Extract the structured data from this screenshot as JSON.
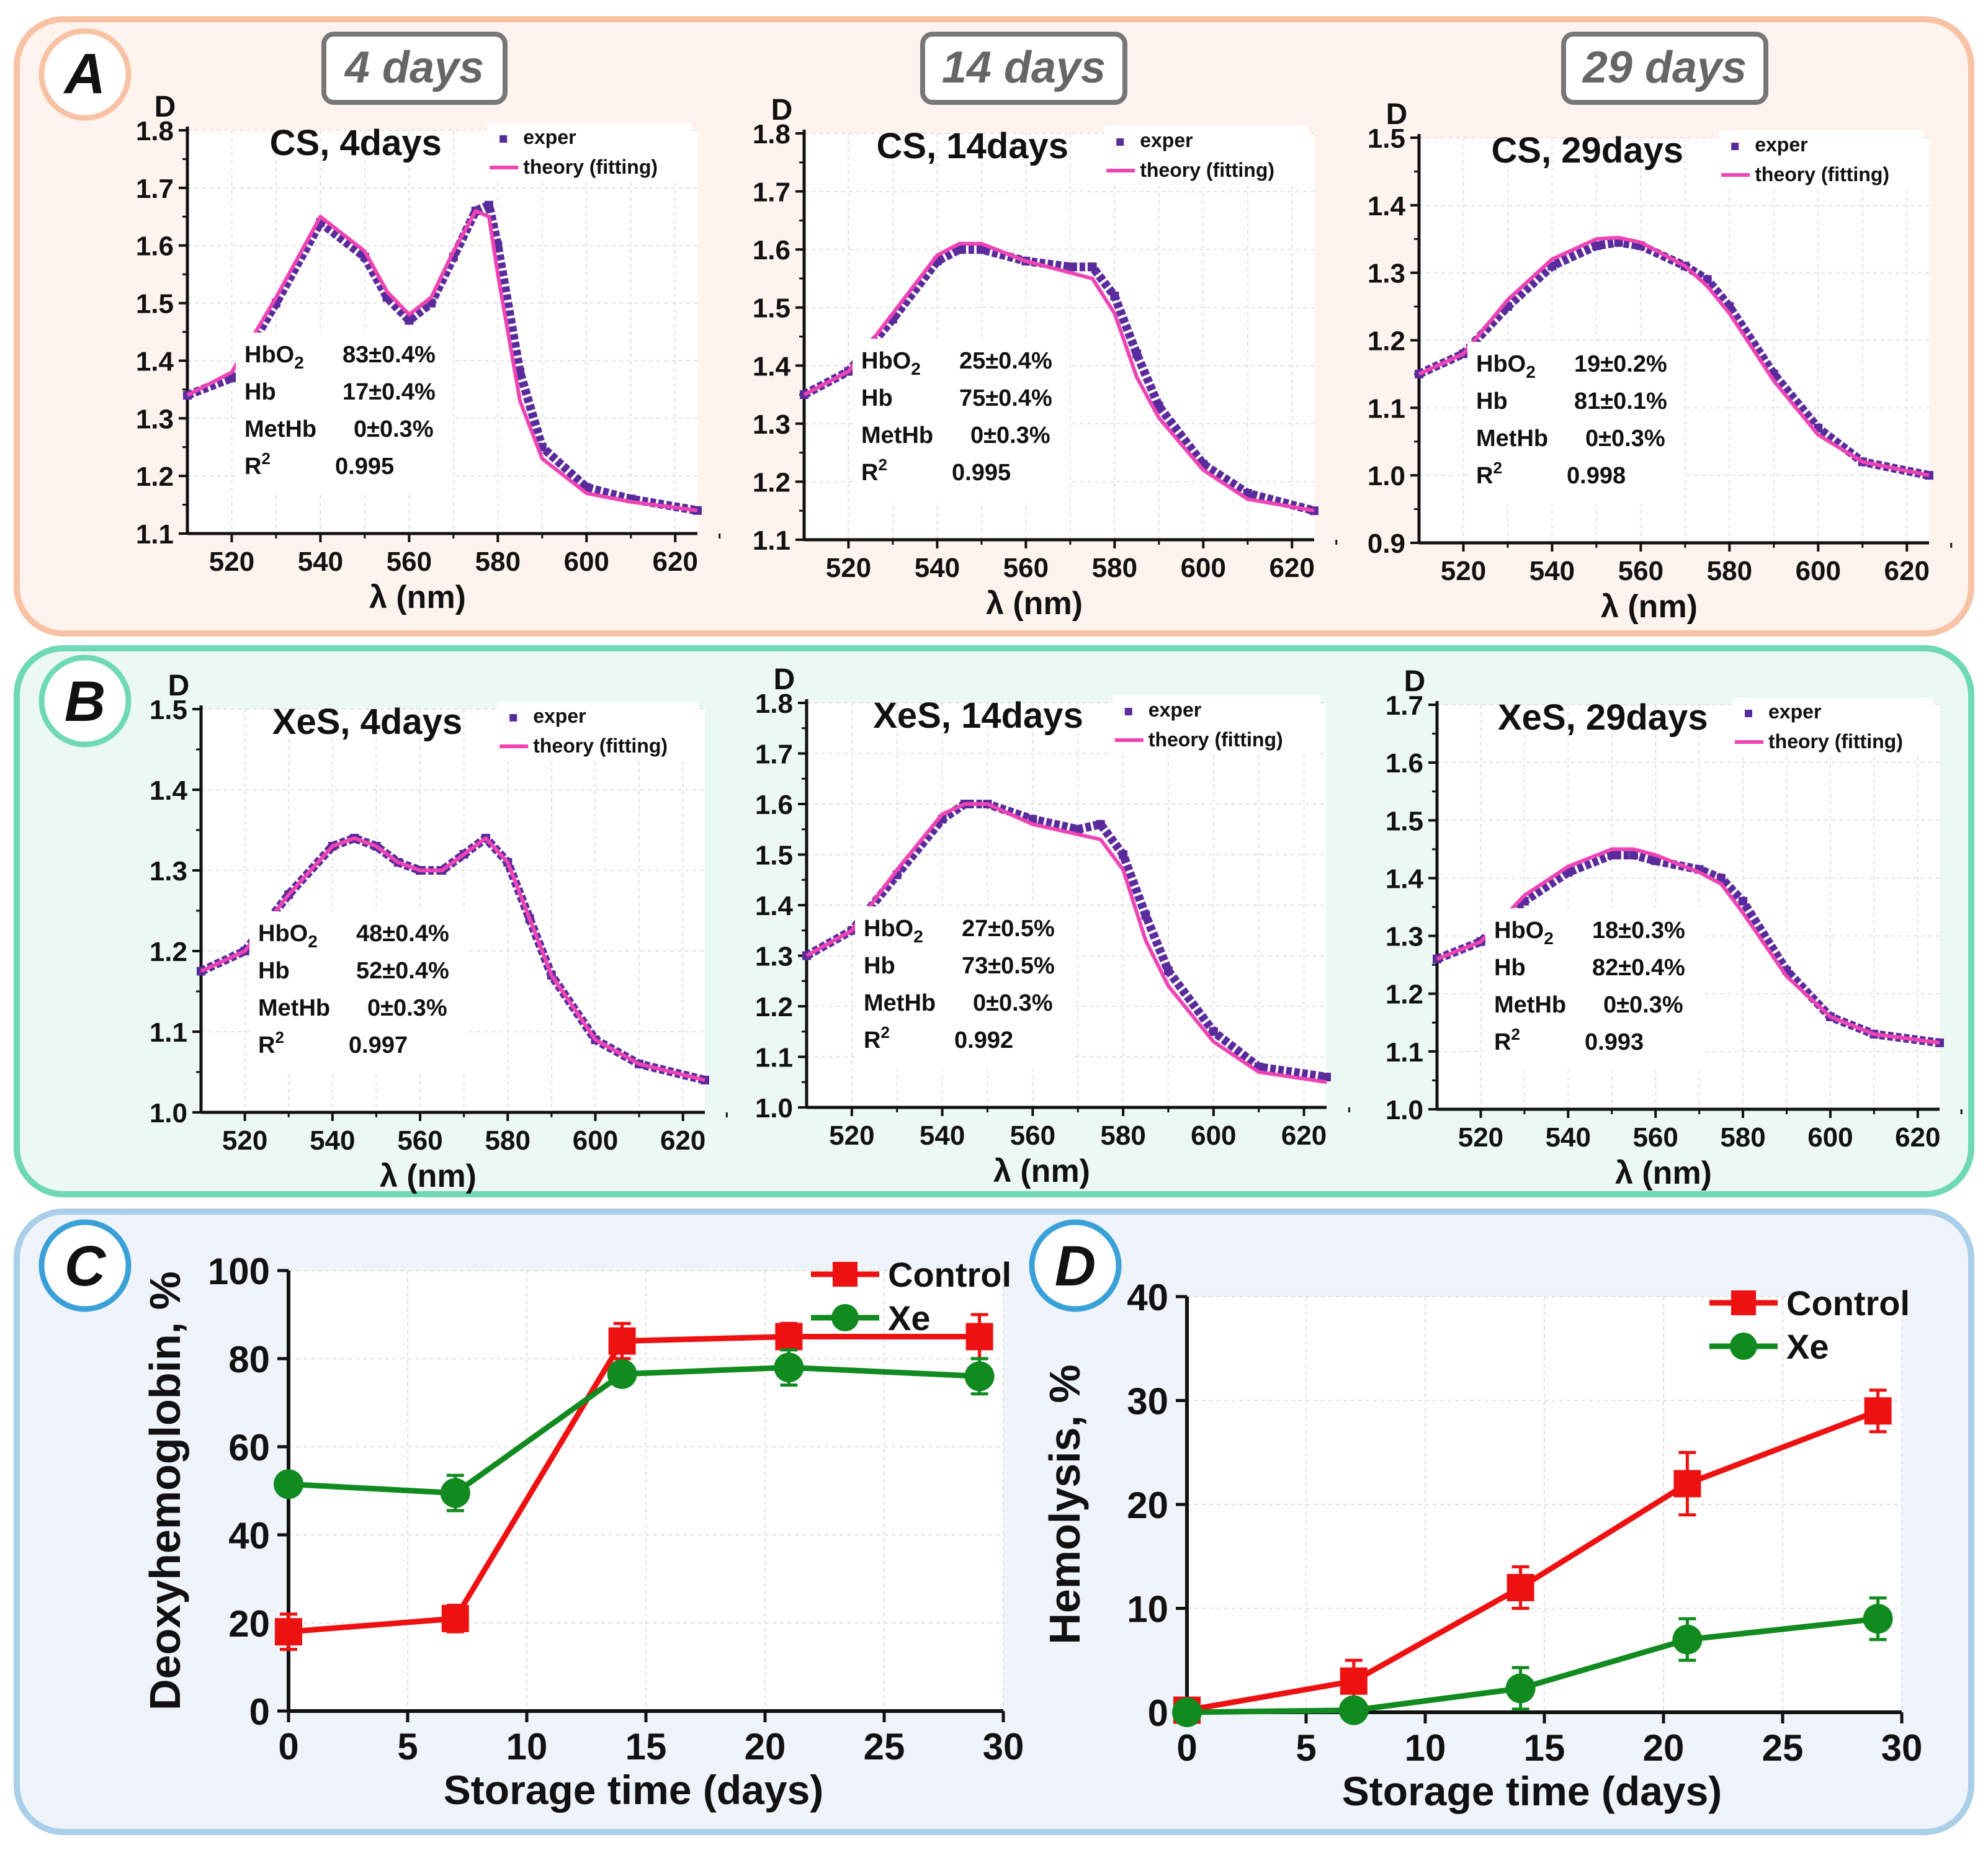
{
  "colors": {
    "exper": "#5a2b9c",
    "theory": "#ee44b4",
    "control": "#ee1111",
    "xe": "#118a1f",
    "panelA_border": "#f8c2a4",
    "panelB_border": "#6fd8b5",
    "panelCD_border": "#a9cfe9"
  },
  "panel_labels": {
    "a": "A",
    "b": "B",
    "c": "C",
    "d": "D"
  },
  "day_tags": [
    "4 days",
    "14 days",
    "29 days"
  ],
  "chart_data": [
    {
      "id": "a1",
      "type": "line",
      "panel": "A",
      "title": "CS, 4days",
      "ylabel": "D",
      "xlabel": "λ (nm)",
      "xlim": [
        510,
        625
      ],
      "xticks": [
        520,
        540,
        560,
        580,
        600,
        620
      ],
      "ylim": [
        1.1,
        1.8
      ],
      "yticks": [
        "1.1",
        "1.2",
        "1.3",
        "1.4",
        "1.5",
        "1.6",
        "1.7",
        "1.8"
      ],
      "legend": [
        "exper",
        "theory (fitting)"
      ],
      "table": {
        "labels": [
          "HbO2",
          "Hb",
          "MetHb",
          "R2"
        ],
        "values": [
          "83±0.4%",
          "17±0.4%",
          "0±0.3%",
          "0.995"
        ]
      },
      "exper": {
        "x": [
          510,
          520,
          530,
          540,
          550,
          555,
          560,
          565,
          570,
          575,
          578,
          580,
          585,
          590,
          600,
          610,
          625
        ],
        "y": [
          1.34,
          1.37,
          1.5,
          1.64,
          1.58,
          1.51,
          1.47,
          1.5,
          1.58,
          1.66,
          1.67,
          1.6,
          1.38,
          1.25,
          1.18,
          1.16,
          1.14
        ]
      },
      "theory": {
        "x": [
          510,
          520,
          530,
          540,
          550,
          555,
          560,
          565,
          570,
          575,
          578,
          580,
          585,
          590,
          600,
          610,
          625
        ],
        "y": [
          1.34,
          1.38,
          1.51,
          1.65,
          1.59,
          1.52,
          1.48,
          1.51,
          1.59,
          1.66,
          1.65,
          1.55,
          1.33,
          1.23,
          1.17,
          1.155,
          1.14
        ]
      }
    },
    {
      "id": "a2",
      "type": "line",
      "panel": "A",
      "title": "CS, 14days",
      "ylabel": "D",
      "xlabel": "λ (nm)",
      "xlim": [
        510,
        625
      ],
      "xticks": [
        520,
        540,
        560,
        580,
        600,
        620
      ],
      "ylim": [
        1.1,
        1.8
      ],
      "yticks": [
        "1.1",
        "1.2",
        "1.3",
        "1.4",
        "1.5",
        "1.6",
        "1.7",
        "1.8"
      ],
      "legend": [
        "exper",
        "theory (fitting)"
      ],
      "table": {
        "labels": [
          "HbO2",
          "Hb",
          "MetHb",
          "R2"
        ],
        "values": [
          "25±0.4%",
          "75±0.4%",
          "0±0.3%",
          "0.995"
        ]
      },
      "exper": {
        "x": [
          510,
          520,
          530,
          540,
          545,
          550,
          560,
          570,
          575,
          580,
          585,
          590,
          600,
          610,
          625
        ],
        "y": [
          1.35,
          1.39,
          1.48,
          1.58,
          1.6,
          1.6,
          1.58,
          1.57,
          1.57,
          1.52,
          1.42,
          1.33,
          1.23,
          1.18,
          1.15
        ]
      },
      "theory": {
        "x": [
          510,
          520,
          530,
          540,
          545,
          550,
          560,
          570,
          575,
          580,
          585,
          590,
          600,
          610,
          625
        ],
        "y": [
          1.35,
          1.39,
          1.49,
          1.59,
          1.61,
          1.61,
          1.58,
          1.56,
          1.55,
          1.49,
          1.38,
          1.31,
          1.22,
          1.17,
          1.15
        ]
      }
    },
    {
      "id": "a3",
      "type": "line",
      "panel": "A",
      "title": "CS, 29days",
      "ylabel": "D",
      "xlabel": "λ (nm)",
      "xlim": [
        510,
        625
      ],
      "xticks": [
        520,
        540,
        560,
        580,
        600,
        620
      ],
      "ylim": [
        0.9,
        1.5
      ],
      "yticks": [
        "0.9",
        "1.0",
        "1.1",
        "1.2",
        "1.3",
        "1.4",
        "1.5"
      ],
      "legend": [
        "exper",
        "theory (fitting)"
      ],
      "table": {
        "labels": [
          "HbO2",
          "Hb",
          "MetHb",
          "R2"
        ],
        "values": [
          "19±0.2%",
          "81±0.1%",
          "0±0.3%",
          "0.998"
        ]
      },
      "exper": {
        "x": [
          510,
          520,
          530,
          540,
          550,
          555,
          560,
          570,
          575,
          580,
          590,
          600,
          610,
          625
        ],
        "y": [
          1.15,
          1.18,
          1.25,
          1.31,
          1.34,
          1.345,
          1.34,
          1.31,
          1.29,
          1.25,
          1.15,
          1.07,
          1.02,
          1.0
        ]
      },
      "theory": {
        "x": [
          510,
          520,
          530,
          540,
          550,
          555,
          560,
          570,
          575,
          580,
          590,
          600,
          610,
          625
        ],
        "y": [
          1.15,
          1.18,
          1.26,
          1.32,
          1.35,
          1.352,
          1.345,
          1.31,
          1.28,
          1.24,
          1.14,
          1.06,
          1.02,
          1.0
        ]
      }
    },
    {
      "id": "b1",
      "type": "line",
      "panel": "B",
      "title": "XeS, 4days",
      "ylabel": "D",
      "xlabel": "λ (nm)",
      "xlim": [
        510,
        625
      ],
      "xticks": [
        520,
        540,
        560,
        580,
        600,
        620
      ],
      "ylim": [
        1.0,
        1.5
      ],
      "yticks": [
        "1.0",
        "1.1",
        "1.2",
        "1.3",
        "1.4",
        "1.5"
      ],
      "legend": [
        "exper",
        "theory (fitting)"
      ],
      "table": {
        "labels": [
          "HbO2",
          "Hb",
          "MetHb",
          "R2"
        ],
        "values": [
          "48±0.4%",
          "52±0.4%",
          "0±0.3%",
          "0.997"
        ]
      },
      "exper": {
        "x": [
          510,
          520,
          530,
          540,
          545,
          550,
          555,
          560,
          565,
          570,
          575,
          580,
          585,
          590,
          600,
          610,
          625
        ],
        "y": [
          1.175,
          1.2,
          1.27,
          1.33,
          1.34,
          1.33,
          1.31,
          1.3,
          1.3,
          1.32,
          1.34,
          1.31,
          1.24,
          1.17,
          1.09,
          1.06,
          1.04
        ]
      },
      "theory": {
        "x": [
          510,
          520,
          530,
          540,
          545,
          550,
          555,
          560,
          565,
          570,
          575,
          580,
          585,
          590,
          600,
          610,
          625
        ],
        "y": [
          1.175,
          1.2,
          1.27,
          1.33,
          1.34,
          1.33,
          1.31,
          1.3,
          1.3,
          1.32,
          1.34,
          1.31,
          1.24,
          1.17,
          1.09,
          1.06,
          1.04
        ]
      }
    },
    {
      "id": "b2",
      "type": "line",
      "panel": "B",
      "title": "XeS, 14days",
      "ylabel": "D",
      "xlabel": "λ (nm)",
      "xlim": [
        510,
        625
      ],
      "xticks": [
        520,
        540,
        560,
        580,
        600,
        620
      ],
      "ylim": [
        1.0,
        1.8
      ],
      "yticks": [
        "1.0",
        "1.1",
        "1.2",
        "1.3",
        "1.4",
        "1.5",
        "1.6",
        "1.7",
        "1.8"
      ],
      "legend": [
        "exper",
        "theory (fitting)"
      ],
      "table": {
        "labels": [
          "HbO2",
          "Hb",
          "MetHb",
          "R2"
        ],
        "values": [
          "27±0.5%",
          "73±0.5%",
          "0±0.3%",
          "0.992"
        ]
      },
      "exper": {
        "x": [
          510,
          520,
          530,
          540,
          545,
          550,
          560,
          570,
          575,
          580,
          585,
          590,
          600,
          610,
          625
        ],
        "y": [
          1.3,
          1.35,
          1.46,
          1.57,
          1.6,
          1.6,
          1.57,
          1.55,
          1.56,
          1.5,
          1.38,
          1.27,
          1.15,
          1.08,
          1.06
        ]
      },
      "theory": {
        "x": [
          510,
          520,
          530,
          540,
          545,
          550,
          560,
          570,
          575,
          580,
          585,
          590,
          600,
          610,
          625
        ],
        "y": [
          1.3,
          1.35,
          1.47,
          1.58,
          1.6,
          1.6,
          1.56,
          1.54,
          1.53,
          1.47,
          1.33,
          1.24,
          1.13,
          1.07,
          1.05
        ]
      }
    },
    {
      "id": "b3",
      "type": "line",
      "panel": "B",
      "title": "XeS, 29days",
      "ylabel": "D",
      "xlabel": "λ (nm)",
      "xlim": [
        510,
        625
      ],
      "xticks": [
        520,
        540,
        560,
        580,
        600,
        620
      ],
      "ylim": [
        1.0,
        1.7
      ],
      "yticks": [
        "1.0",
        "1.1",
        "1.2",
        "1.3",
        "1.4",
        "1.5",
        "1.6",
        "1.7"
      ],
      "legend": [
        "exper",
        "theory (fitting)"
      ],
      "table": {
        "labels": [
          "HbO2",
          "Hb",
          "MetHb",
          "R2"
        ],
        "values": [
          "18±0.3%",
          "82±0.4%",
          "0±0.3%",
          "0.993"
        ]
      },
      "exper": {
        "x": [
          510,
          520,
          530,
          540,
          550,
          555,
          560,
          570,
          575,
          580,
          590,
          600,
          610,
          625
        ],
        "y": [
          1.26,
          1.29,
          1.36,
          1.41,
          1.44,
          1.44,
          1.43,
          1.415,
          1.4,
          1.36,
          1.24,
          1.16,
          1.13,
          1.115
        ]
      },
      "theory": {
        "x": [
          510,
          520,
          530,
          540,
          550,
          555,
          560,
          570,
          575,
          580,
          590,
          600,
          610,
          625
        ],
        "y": [
          1.26,
          1.29,
          1.37,
          1.42,
          1.45,
          1.45,
          1.44,
          1.41,
          1.39,
          1.34,
          1.23,
          1.16,
          1.13,
          1.115
        ]
      }
    },
    {
      "id": "c",
      "type": "line",
      "panel": "C",
      "title": "",
      "xlabel": "Storage time (days)",
      "ylabel": "Deoxyhemoglobin, %",
      "xlim": [
        0,
        30
      ],
      "xticks": [
        "0",
        "5",
        "10",
        "15",
        "20",
        "25",
        "30"
      ],
      "ylim": [
        0,
        100
      ],
      "yticks": [
        "0",
        "20",
        "40",
        "60",
        "80",
        "100"
      ],
      "legend_position": "top-right",
      "series": [
        {
          "name": "Control",
          "x": [
            0,
            7,
            14,
            21,
            29
          ],
          "y": [
            18,
            21,
            84,
            85,
            85
          ],
          "err": [
            4,
            3,
            4,
            3,
            5
          ]
        },
        {
          "name": "Xe",
          "x": [
            0,
            7,
            14,
            21,
            29
          ],
          "y": [
            51.5,
            49.5,
            76.5,
            78,
            76
          ],
          "err": [
            2,
            4,
            2,
            4,
            4
          ]
        }
      ]
    },
    {
      "id": "d",
      "type": "line",
      "panel": "D",
      "title": "",
      "xlabel": "Storage time (days)",
      "ylabel": "Hemolysis, %",
      "xlim": [
        0,
        30
      ],
      "xticks": [
        "0",
        "5",
        "10",
        "15",
        "20",
        "25",
        "30"
      ],
      "ylim": [
        0,
        40
      ],
      "yticks": [
        "0",
        "10",
        "20",
        "30",
        "40"
      ],
      "legend_position": "top-right",
      "series": [
        {
          "name": "Control",
          "x": [
            0,
            7,
            14,
            21,
            29
          ],
          "y": [
            0.2,
            3,
            12,
            22,
            29
          ],
          "err": [
            0.3,
            2,
            2,
            3,
            2
          ]
        },
        {
          "name": "Xe",
          "x": [
            0,
            7,
            14,
            21,
            29
          ],
          "y": [
            0,
            0.2,
            2.3,
            7,
            9
          ],
          "err": [
            0.3,
            0.5,
            2,
            2,
            2
          ]
        }
      ]
    }
  ]
}
